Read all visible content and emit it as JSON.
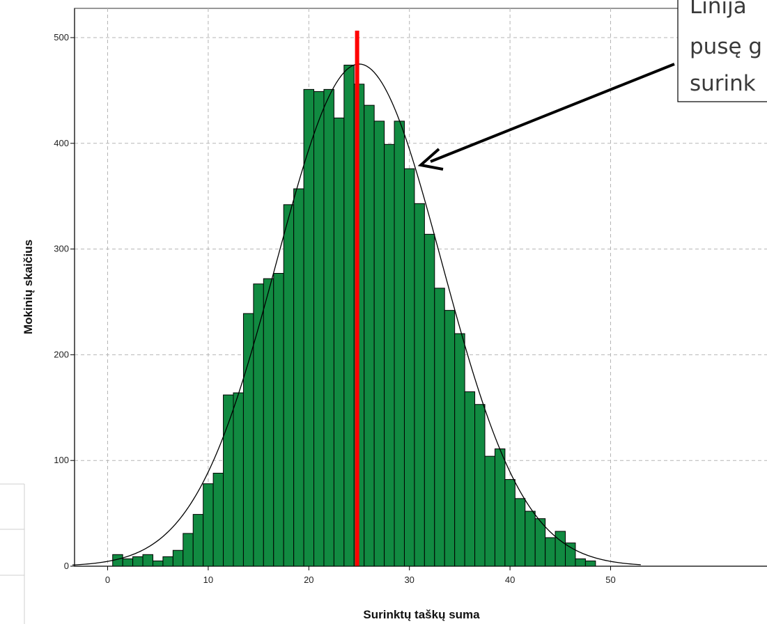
{
  "chart_data": {
    "type": "bar",
    "xlabel": "Surinktų taškų suma",
    "ylabel": "Mokinių skaičius",
    "xlim": [
      -3.5,
      53
    ],
    "ylim": [
      0,
      525
    ],
    "x_ticks": [
      0,
      10,
      20,
      30,
      40,
      50
    ],
    "y_ticks": [
      0,
      100,
      200,
      300,
      400,
      500
    ],
    "grid": true,
    "bin_width": 1,
    "bins_x": [
      1,
      2,
      3,
      4,
      5,
      6,
      7,
      8,
      9,
      10,
      11,
      12,
      13,
      14,
      15,
      16,
      17,
      18,
      19,
      20,
      21,
      22,
      23,
      24,
      25,
      26,
      27,
      28,
      29,
      30,
      31,
      32,
      33,
      34,
      35,
      36,
      37,
      38,
      39,
      40,
      41,
      42,
      43,
      44,
      45,
      46,
      47,
      48
    ],
    "values": [
      11,
      7,
      9,
      11,
      5,
      9,
      15,
      31,
      49,
      78,
      88,
      162,
      164,
      239,
      267,
      272,
      277,
      342,
      357,
      451,
      449,
      451,
      424,
      474,
      456,
      436,
      421,
      399,
      421,
      376,
      343,
      314,
      263,
      242,
      220,
      165,
      153,
      104,
      111,
      82,
      64,
      52,
      45,
      27,
      33,
      22,
      7,
      5
    ],
    "normal_curve": {
      "mean": 25,
      "sd": 8.2,
      "peak": 475
    },
    "reference_line": {
      "x": 24.8,
      "color": "#ff0000"
    },
    "bar_color": "#118a41",
    "annotation_lines": [
      "Linija",
      "pusę g",
      "surink"
    ]
  }
}
